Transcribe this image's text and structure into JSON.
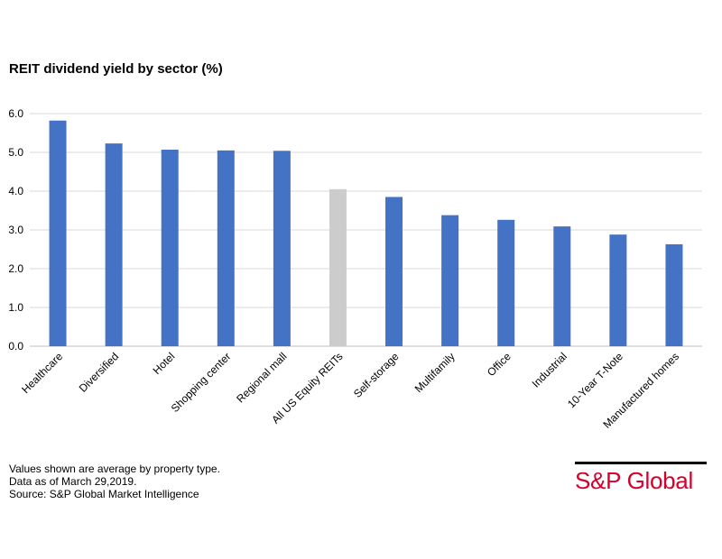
{
  "chart_data": {
    "type": "bar",
    "title": "REIT dividend yield by sector (%)",
    "categories": [
      "Healthcare",
      "Diversified",
      "Hotel",
      "Shopping center",
      "Regional mall",
      "All US Equity REITs",
      "Self-storage",
      "Multifamily",
      "Office",
      "Industrial",
      "10-Year T-Note",
      "Manufactured homes"
    ],
    "values": [
      5.82,
      5.23,
      5.07,
      5.05,
      5.04,
      4.05,
      3.85,
      3.38,
      3.26,
      3.09,
      2.88,
      2.63
    ],
    "ylim": [
      0,
      6
    ],
    "yticks": [
      "0.0",
      "1.0",
      "2.0",
      "3.0",
      "4.0",
      "5.0",
      "6.0"
    ],
    "grid": true,
    "colors": {
      "bar": "#4472c4",
      "highlight": "#cccccc",
      "grid": "#d9d9d9"
    },
    "highlight_index": 5
  },
  "notes": {
    "line1": "Values shown are average by property type.",
    "line2": "Data as of March 29,2019.",
    "line3": "Source: S&P Global Market Intelligence"
  },
  "logo": {
    "text": "S&P Global",
    "color": "#d6002a"
  }
}
